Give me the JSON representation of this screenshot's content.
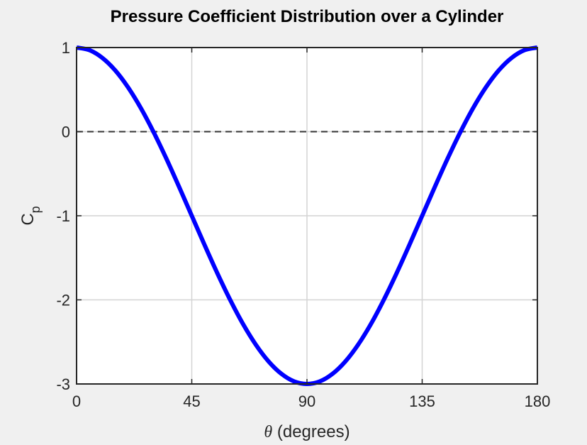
{
  "chart_data": {
    "type": "line",
    "title": "Pressure Coefficient Distribution over a Cylinder",
    "xlabel_symbol": "θ",
    "xlabel_text": " (degrees)",
    "ylabel_main": "C",
    "ylabel_sub": "p",
    "xlim": [
      0,
      180
    ],
    "ylim": [
      -3,
      1
    ],
    "xticks": [
      0,
      45,
      90,
      135,
      180
    ],
    "yticks": [
      -3,
      -2,
      -1,
      0,
      1
    ],
    "grid": true,
    "series": [
      {
        "color": "#0000ff",
        "x": [
          0,
          5,
          10,
          15,
          20,
          25,
          30,
          35,
          40,
          45,
          50,
          55,
          60,
          65,
          70,
          75,
          80,
          85,
          90,
          95,
          100,
          105,
          110,
          115,
          120,
          125,
          130,
          135,
          140,
          145,
          150,
          155,
          160,
          165,
          170,
          175,
          180
        ],
        "y": [
          1.0,
          0.97,
          0.879,
          0.732,
          0.532,
          0.286,
          0.0,
          -0.316,
          -0.653,
          -1.0,
          -1.347,
          -1.684,
          -2.0,
          -2.286,
          -2.532,
          -2.732,
          -2.879,
          -2.97,
          -3.0,
          -2.97,
          -2.879,
          -2.732,
          -2.532,
          -2.286,
          -2.0,
          -1.684,
          -1.347,
          -1.0,
          -0.653,
          -0.316,
          0.0,
          0.286,
          0.532,
          0.732,
          0.879,
          0.97,
          1.0
        ]
      }
    ],
    "reference_line": {
      "y": 0,
      "style": "dashed",
      "color": "#333333"
    }
  }
}
